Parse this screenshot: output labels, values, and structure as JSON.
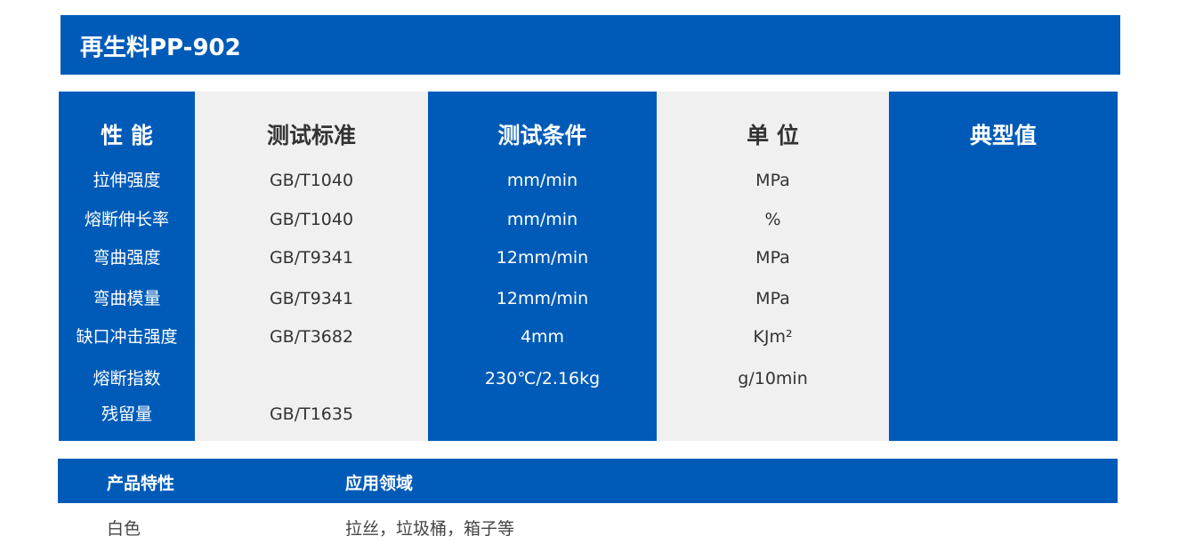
{
  "title": "再生料PP-902",
  "colors": {
    "blue": "#005bb8",
    "gray": "#f0f0f0"
  },
  "table": {
    "headers": [
      "性 能",
      "测试标准",
      "测试条件",
      "单 位",
      "典型值"
    ],
    "rows": [
      [
        "拉伸强度",
        "GB/T1040",
        "mm/min",
        "MPa",
        ""
      ],
      [
        "熔断伸长率",
        "GB/T1040",
        "mm/min",
        "%",
        ""
      ],
      [
        "弯曲强度",
        "GB/T9341",
        "12mm/min",
        "MPa",
        ""
      ],
      [
        "弯曲模量",
        "GB/T9341",
        "12mm/min",
        "MPa",
        ""
      ],
      [
        "缺口冲击强度",
        "GB/T3682",
        "4mm",
        "KJm²",
        ""
      ],
      [
        "熔断指数",
        "",
        "230℃/2.16kg",
        "g/10min",
        ""
      ],
      [
        "残留量",
        "GB/T1635",
        "",
        "",
        ""
      ]
    ]
  },
  "footer": {
    "headers": [
      "产品特性",
      "应用领域"
    ],
    "values": [
      "白色",
      "拉丝，垃圾桶，箱子等"
    ]
  }
}
